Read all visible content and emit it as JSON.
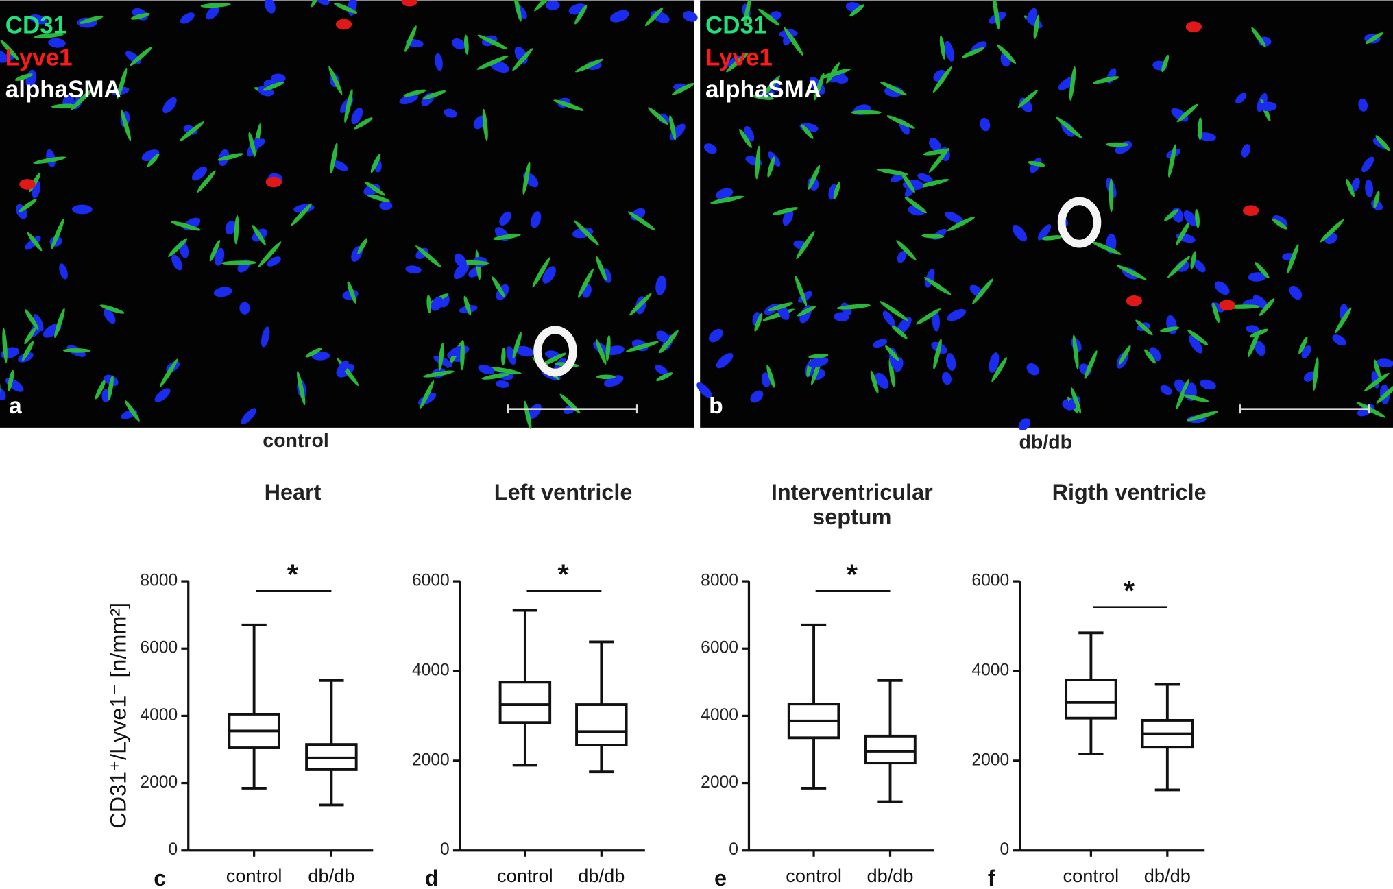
{
  "panels": [
    {
      "letter": "a",
      "caption": "control",
      "stains": [
        {
          "name": "CD31",
          "color": "#22e07a"
        },
        {
          "name": "Lyve1",
          "color": "#ff1a1a"
        },
        {
          "name": "alphaSMA",
          "color": "#ffffff"
        }
      ]
    },
    {
      "letter": "b",
      "caption": "db/db",
      "stains": [
        {
          "name": "CD31",
          "color": "#22e07a"
        },
        {
          "name": "Lyve1",
          "color": "#ff1a1a"
        },
        {
          "name": "alphaSMA",
          "color": "#ffffff"
        }
      ]
    }
  ],
  "chart_data": [
    {
      "type": "box",
      "title": "Heart",
      "letter": "c",
      "ylabel": "CD31⁺/Lyve1⁻ [n/mm²]",
      "significance": "*",
      "categories": [
        "control",
        "db/db"
      ],
      "boxes": [
        {
          "min": 1850,
          "q1": 3050,
          "median": 3550,
          "q3": 4050,
          "max": 6700
        },
        {
          "min": 1350,
          "q1": 2400,
          "median": 2750,
          "q3": 3150,
          "max": 5050
        }
      ],
      "ylim": [
        0,
        8000
      ],
      "yticks": [
        0,
        2000,
        4000,
        6000,
        8000
      ]
    },
    {
      "type": "box",
      "title": "Left ventricle",
      "letter": "d",
      "significance": "*",
      "categories": [
        "control",
        "db/db"
      ],
      "boxes": [
        {
          "min": 1900,
          "q1": 2850,
          "median": 3250,
          "q3": 3750,
          "max": 5350
        },
        {
          "min": 1750,
          "q1": 2350,
          "median": 2650,
          "q3": 3250,
          "max": 4650
        }
      ],
      "ylim": [
        0,
        6000
      ],
      "yticks": [
        0,
        2000,
        4000,
        6000
      ]
    },
    {
      "type": "box",
      "title": "Interventricular septum",
      "letter": "e",
      "significance": "*",
      "categories": [
        "control",
        "db/db"
      ],
      "boxes": [
        {
          "min": 1850,
          "q1": 3350,
          "median": 3850,
          "q3": 4350,
          "max": 6700
        },
        {
          "min": 1450,
          "q1": 2600,
          "median": 2950,
          "q3": 3400,
          "max": 5050
        }
      ],
      "ylim": [
        0,
        8000
      ],
      "yticks": [
        0,
        2000,
        4000,
        6000,
        8000
      ]
    },
    {
      "type": "box",
      "title": "Rigth ventricle",
      "letter": "f",
      "significance": "*",
      "categories": [
        "control",
        "db/db"
      ],
      "boxes": [
        {
          "min": 2150,
          "q1": 2950,
          "median": 3300,
          "q3": 3800,
          "max": 4850
        },
        {
          "min": 1350,
          "q1": 2300,
          "median": 2600,
          "q3": 2900,
          "max": 3700
        }
      ],
      "ylim": [
        0,
        6000
      ],
      "yticks": [
        0,
        2000,
        4000,
        6000
      ]
    }
  ]
}
